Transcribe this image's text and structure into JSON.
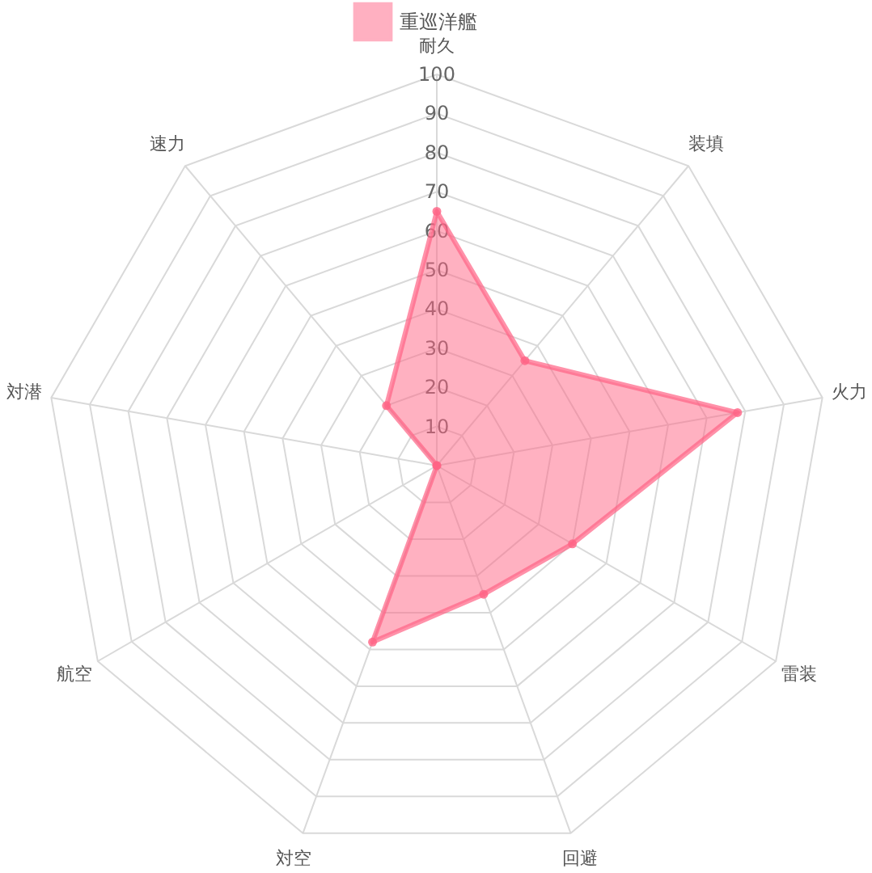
{
  "chart_data": {
    "type": "radar",
    "categories": [
      "耐久",
      "装填",
      "火力",
      "雷装",
      "回避",
      "対空",
      "航空",
      "対潜",
      "速力"
    ],
    "series": [
      {
        "name": "重巡洋艦",
        "color": "#ff6384",
        "values": [
          65,
          35,
          78,
          40,
          35,
          48,
          0,
          0,
          20
        ]
      }
    ],
    "ylim": [
      0,
      100
    ],
    "yticks": [
      10,
      20,
      30,
      40,
      50,
      60,
      70,
      80,
      90,
      100
    ],
    "grid": true,
    "legend": "top",
    "marker": "circle"
  }
}
